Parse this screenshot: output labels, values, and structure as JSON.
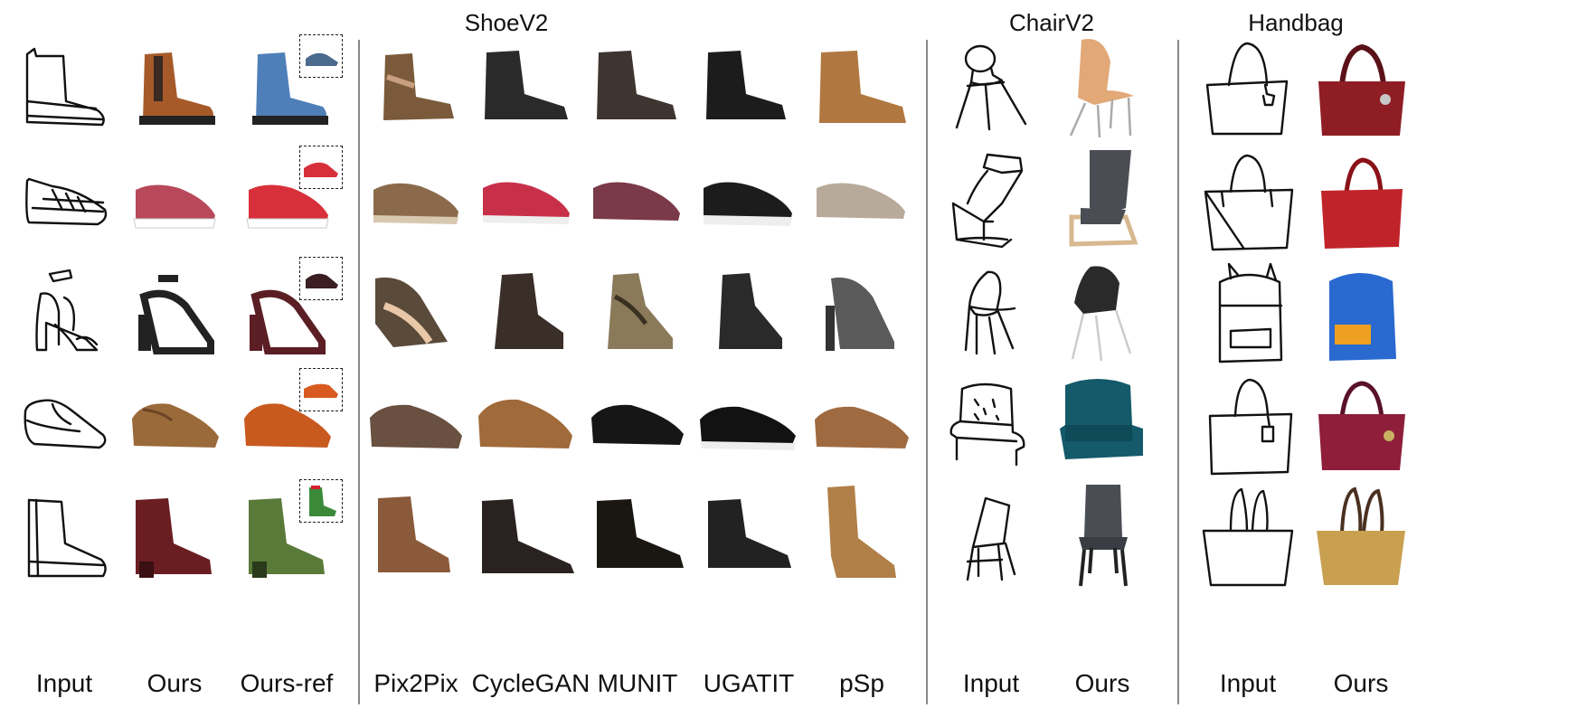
{
  "sections": {
    "shoe": "ShoeV2",
    "chair": "ChairV2",
    "handbag": "Handbag"
  },
  "columns": {
    "input": "Input",
    "ours": "Ours",
    "ours_ref": "Ours-ref",
    "pix2pix": "Pix2Pix",
    "cyclegan": "CycleGAN",
    "munit": "MUNIT",
    "ugatit": "UGATIT",
    "psp": "pSp",
    "chair_input": "Input",
    "chair_ours": "Ours",
    "bag_input": "Input",
    "bag_ours": "Ours"
  },
  "colors": {
    "separator": "#888888",
    "boot_brown": "#a65a2a",
    "boot_blue": "#4f7fb8",
    "sneaker_pink": "#b8485a",
    "sneaker_red": "#d8303a",
    "sandal_black": "#222222",
    "sandal_maroon": "#5a1e24",
    "loafer_tan": "#9a6a3a",
    "loafer_orange": "#c85a20",
    "ankle_maroon": "#6a1e22",
    "ankle_green": "#5a7a3a",
    "bag_red": "#8e1e24",
    "bag_blue": "#2a6ad0",
    "bag_gold": "#c8a050",
    "chair_teal": "#145a6a",
    "chair_gray": "#4a4e54",
    "chair_wood": "#d8b890"
  }
}
